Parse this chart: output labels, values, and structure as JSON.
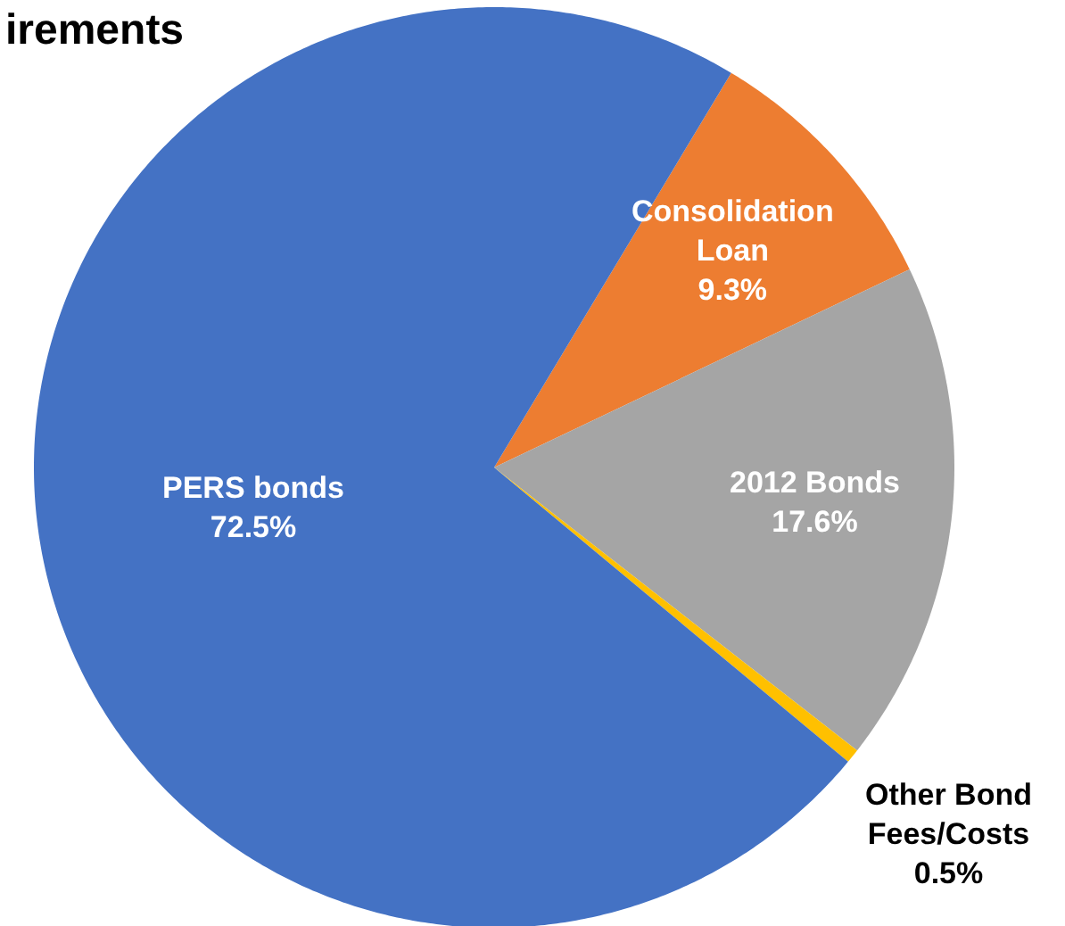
{
  "chart_data": {
    "type": "pie",
    "title": "irements",
    "categories": [
      "Consolidation Loan",
      "2012 Bonds",
      "Other Bond Fees/Costs",
      "PERS bonds"
    ],
    "values": [
      9.3,
      17.6,
      0.5,
      72.5
    ],
    "colors": [
      "#ed7d31",
      "#a5a5a5",
      "#ffc000",
      "#4472c4"
    ],
    "value_labels": [
      "9.3%",
      "17.6%",
      "0.5%",
      "72.5%"
    ]
  }
}
